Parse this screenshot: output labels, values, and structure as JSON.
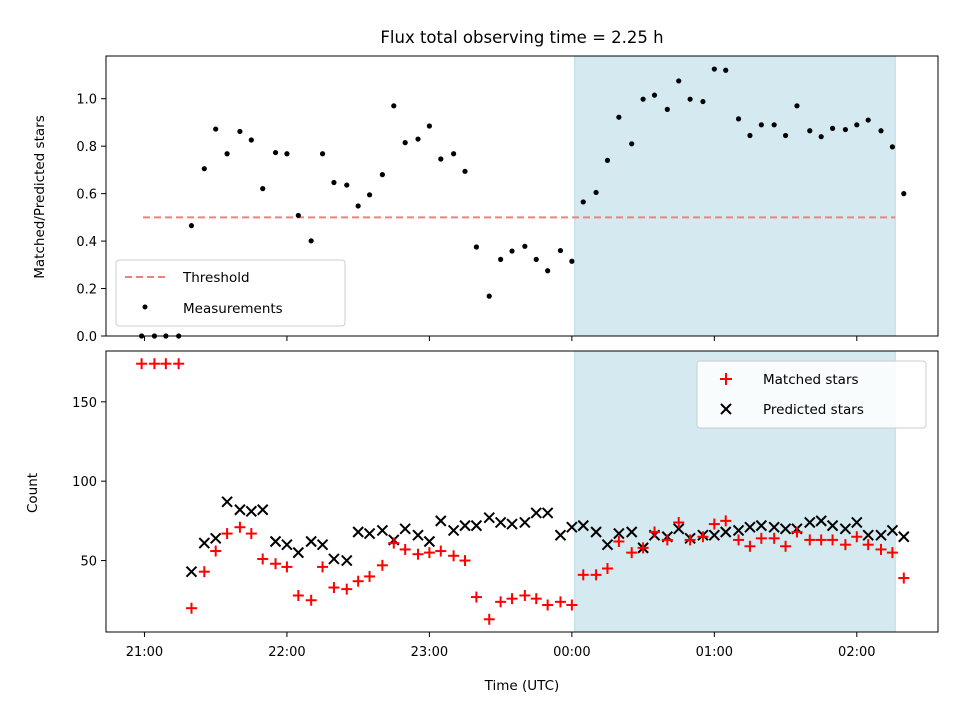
{
  "chart_data": {
    "type": "scatter",
    "title": "Flux total observing time = 2.25 h",
    "xlabel": "Time (UTC)",
    "x_ticks": [
      {
        "value": 0,
        "label": "21:00"
      },
      {
        "value": 1,
        "label": "22:00"
      },
      {
        "value": 2,
        "label": "23:00"
      },
      {
        "value": 3,
        "label": "00:00"
      },
      {
        "value": 4,
        "label": "01:00"
      },
      {
        "value": 5,
        "label": "02:00"
      }
    ],
    "xlim": [
      -0.27,
      5.57
    ],
    "shaded_region": {
      "x_start": 3.02,
      "x_end": 5.27,
      "color": "#d4eaf0"
    },
    "panels": [
      {
        "name": "ratio",
        "ylabel": "Matched/Predicted stars",
        "ylim": [
          0,
          1.18
        ],
        "y_ticks": [
          {
            "value": 0,
            "label": "0.0"
          },
          {
            "value": 0.2,
            "label": "0.2"
          },
          {
            "value": 0.4,
            "label": "0.4"
          },
          {
            "value": 0.6,
            "label": "0.6"
          },
          {
            "value": 0.8,
            "label": "0.8"
          },
          {
            "value": 1.0,
            "label": "1.0"
          }
        ],
        "threshold": {
          "name": "Threshold",
          "value": 0.5,
          "x_start": -0.01,
          "x_end": 5.27,
          "color": "#f08080"
        },
        "series": [
          {
            "name": "Measurements",
            "marker": "dot",
            "color": "#000000",
            "points": [
              [
                -0.02,
                0.0
              ],
              [
                0.07,
                0.0
              ],
              [
                0.15,
                0.0
              ],
              [
                0.24,
                0.0
              ],
              [
                0.33,
                0.465
              ],
              [
                0.42,
                0.705
              ],
              [
                0.5,
                0.872
              ],
              [
                0.58,
                0.768
              ],
              [
                0.67,
                0.862
              ],
              [
                0.75,
                0.826
              ],
              [
                0.83,
                0.621
              ],
              [
                0.92,
                0.773
              ],
              [
                1.0,
                0.768
              ],
              [
                1.08,
                0.508
              ],
              [
                1.17,
                0.401
              ],
              [
                1.25,
                0.768
              ],
              [
                1.33,
                0.647
              ],
              [
                1.42,
                0.636
              ],
              [
                1.5,
                0.548
              ],
              [
                1.58,
                0.595
              ],
              [
                1.67,
                0.68
              ],
              [
                1.75,
                0.97
              ],
              [
                1.83,
                0.815
              ],
              [
                1.92,
                0.83
              ],
              [
                2.0,
                0.885
              ],
              [
                2.08,
                0.746
              ],
              [
                2.17,
                0.768
              ],
              [
                2.25,
                0.694
              ],
              [
                2.33,
                0.375
              ],
              [
                2.42,
                0.168
              ],
              [
                2.5,
                0.323
              ],
              [
                2.58,
                0.358
              ],
              [
                2.67,
                0.378
              ],
              [
                2.75,
                0.323
              ],
              [
                2.83,
                0.275
              ],
              [
                2.92,
                0.36
              ],
              [
                3.0,
                0.315
              ],
              [
                3.08,
                0.565
              ],
              [
                3.17,
                0.605
              ],
              [
                3.25,
                0.74
              ],
              [
                3.33,
                0.922
              ],
              [
                3.42,
                0.81
              ],
              [
                3.5,
                0.998
              ],
              [
                3.58,
                1.015
              ],
              [
                3.67,
                0.955
              ],
              [
                3.75,
                1.075
              ],
              [
                3.83,
                0.998
              ],
              [
                3.92,
                0.988
              ],
              [
                4.0,
                1.125
              ],
              [
                4.08,
                1.12
              ],
              [
                4.17,
                0.915
              ],
              [
                4.25,
                0.845
              ],
              [
                4.33,
                0.89
              ],
              [
                4.42,
                0.89
              ],
              [
                4.5,
                0.845
              ],
              [
                4.58,
                0.97
              ],
              [
                4.67,
                0.865
              ],
              [
                4.75,
                0.84
              ],
              [
                4.83,
                0.875
              ],
              [
                4.92,
                0.87
              ],
              [
                5.0,
                0.89
              ],
              [
                5.08,
                0.91
              ],
              [
                5.17,
                0.865
              ],
              [
                5.25,
                0.797
              ],
              [
                5.33,
                0.6
              ]
            ]
          }
        ],
        "legend": {
          "position": "lower left",
          "entries": [
            "Threshold",
            "Measurements"
          ]
        }
      },
      {
        "name": "counts",
        "ylabel": "Count",
        "ylim": [
          5,
          182
        ],
        "y_ticks": [
          {
            "value": 50,
            "label": "50"
          },
          {
            "value": 100,
            "label": "100"
          },
          {
            "value": 150,
            "label": "150"
          }
        ],
        "series": [
          {
            "name": "Matched stars",
            "marker": "plus",
            "color": "#ff0000",
            "points": [
              [
                -0.02,
                174
              ],
              [
                0.07,
                174
              ],
              [
                0.15,
                174
              ],
              [
                0.24,
                174
              ],
              [
                0.33,
                20
              ],
              [
                0.42,
                43
              ],
              [
                0.5,
                56
              ],
              [
                0.58,
                67
              ],
              [
                0.67,
                71
              ],
              [
                0.75,
                67
              ],
              [
                0.83,
                51
              ],
              [
                0.92,
                48
              ],
              [
                1.0,
                46
              ],
              [
                1.08,
                28
              ],
              [
                1.17,
                25
              ],
              [
                1.25,
                46
              ],
              [
                1.33,
                33
              ],
              [
                1.42,
                32
              ],
              [
                1.5,
                37
              ],
              [
                1.58,
                40
              ],
              [
                1.67,
                47
              ],
              [
                1.75,
                61
              ],
              [
                1.83,
                57
              ],
              [
                1.92,
                54
              ],
              [
                2.0,
                55
              ],
              [
                2.08,
                56
              ],
              [
                2.17,
                53
              ],
              [
                2.25,
                50
              ],
              [
                2.33,
                27
              ],
              [
                2.42,
                13
              ],
              [
                2.5,
                24
              ],
              [
                2.58,
                26
              ],
              [
                2.67,
                28
              ],
              [
                2.75,
                26
              ],
              [
                2.83,
                22
              ],
              [
                2.92,
                24
              ],
              [
                3.0,
                22
              ],
              [
                3.08,
                41
              ],
              [
                3.17,
                41
              ],
              [
                3.25,
                45
              ],
              [
                3.33,
                62
              ],
              [
                3.42,
                55
              ],
              [
                3.5,
                58
              ],
              [
                3.58,
                68
              ],
              [
                3.67,
                63
              ],
              [
                3.75,
                74
              ],
              [
                3.83,
                63
              ],
              [
                3.92,
                65
              ],
              [
                4.0,
                73
              ],
              [
                4.08,
                75
              ],
              [
                4.17,
                63
              ],
              [
                4.25,
                59
              ],
              [
                4.33,
                64
              ],
              [
                4.42,
                64
              ],
              [
                4.5,
                59
              ],
              [
                4.58,
                68
              ],
              [
                4.67,
                63
              ],
              [
                4.75,
                63
              ],
              [
                4.83,
                63
              ],
              [
                4.92,
                60
              ],
              [
                5.0,
                65
              ],
              [
                5.08,
                60
              ],
              [
                5.17,
                57
              ],
              [
                5.25,
                55
              ],
              [
                5.33,
                39
              ]
            ]
          },
          {
            "name": "Predicted stars",
            "marker": "x",
            "color": "#000000",
            "points": [
              [
                0.33,
                43
              ],
              [
                0.42,
                61
              ],
              [
                0.5,
                64
              ],
              [
                0.58,
                87
              ],
              [
                0.67,
                82
              ],
              [
                0.75,
                81
              ],
              [
                0.83,
                82
              ],
              [
                0.92,
                62
              ],
              [
                1.0,
                60
              ],
              [
                1.08,
                55
              ],
              [
                1.17,
                62
              ],
              [
                1.25,
                60
              ],
              [
                1.33,
                51
              ],
              [
                1.42,
                50
              ],
              [
                1.5,
                68
              ],
              [
                1.58,
                67
              ],
              [
                1.67,
                69
              ],
              [
                1.75,
                63
              ],
              [
                1.83,
                70
              ],
              [
                1.92,
                66
              ],
              [
                2.0,
                62
              ],
              [
                2.08,
                75
              ],
              [
                2.17,
                69
              ],
              [
                2.25,
                72
              ],
              [
                2.33,
                72
              ],
              [
                2.42,
                77
              ],
              [
                2.5,
                74
              ],
              [
                2.58,
                73
              ],
              [
                2.67,
                74
              ],
              [
                2.75,
                80
              ],
              [
                2.83,
                80
              ],
              [
                2.92,
                66
              ],
              [
                3.0,
                71
              ],
              [
                3.08,
                72
              ],
              [
                3.17,
                68
              ],
              [
                3.25,
                60
              ],
              [
                3.33,
                67
              ],
              [
                3.42,
                68
              ],
              [
                3.5,
                58
              ],
              [
                3.58,
                66
              ],
              [
                3.67,
                65
              ],
              [
                3.75,
                70
              ],
              [
                3.83,
                64
              ],
              [
                3.92,
                66
              ],
              [
                4.0,
                66
              ],
              [
                4.08,
                68
              ],
              [
                4.17,
                69
              ],
              [
                4.25,
                71
              ],
              [
                4.33,
                72
              ],
              [
                4.42,
                71
              ],
              [
                4.5,
                70
              ],
              [
                4.58,
                70
              ],
              [
                4.67,
                74
              ],
              [
                4.75,
                75
              ],
              [
                4.83,
                72
              ],
              [
                4.92,
                70
              ],
              [
                5.0,
                74
              ],
              [
                5.08,
                66
              ],
              [
                5.17,
                66
              ],
              [
                5.25,
                69
              ],
              [
                5.33,
                65
              ]
            ]
          }
        ],
        "legend": {
          "position": "upper right",
          "entries": [
            "Matched stars",
            "Predicted stars"
          ]
        }
      }
    ]
  }
}
